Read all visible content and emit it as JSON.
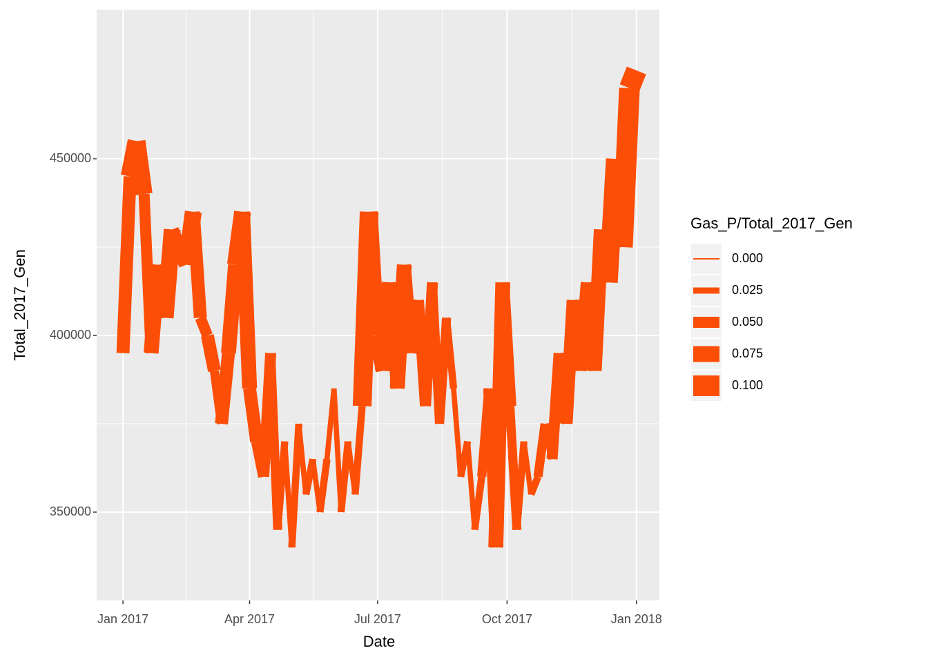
{
  "chart_data": {
    "type": "line",
    "xlabel": "Date",
    "ylabel": "Total_2017_Gen",
    "x": [
      0,
      5,
      10,
      15,
      20,
      25,
      30,
      35,
      40,
      45,
      50,
      55,
      60,
      65,
      70,
      75,
      80,
      85,
      90,
      95,
      100,
      105,
      110,
      115,
      120,
      125,
      130,
      135,
      140,
      145,
      150,
      155,
      160,
      165,
      170,
      175,
      180,
      185,
      190,
      195,
      200,
      205,
      210,
      215,
      220,
      225,
      230,
      235,
      240,
      245,
      250,
      255,
      260,
      265,
      270,
      275,
      280,
      285,
      290,
      295,
      300,
      305,
      310,
      315,
      320,
      325,
      330,
      335,
      340,
      345,
      350,
      355,
      360,
      365
    ],
    "series": [
      {
        "color": "#fc4e07",
        "values": [
          395000,
          445000,
          455000,
          440000,
          395000,
          420000,
          405000,
          430000,
          425000,
          420000,
          435000,
          405000,
          400000,
          390000,
          375000,
          395000,
          420000,
          435000,
          385000,
          370000,
          360000,
          395000,
          345000,
          370000,
          340000,
          375000,
          355000,
          365000,
          350000,
          365000,
          385000,
          350000,
          370000,
          355000,
          380000,
          435000,
          400000,
          390000,
          415000,
          385000,
          420000,
          395000,
          410000,
          380000,
          415000,
          375000,
          405000,
          385000,
          360000,
          370000,
          345000,
          360000,
          385000,
          340000,
          415000,
          380000,
          345000,
          370000,
          355000,
          360000,
          375000,
          365000,
          395000,
          375000,
          410000,
          390000,
          415000,
          390000,
          430000,
          415000,
          450000,
          425000,
          470000,
          475000
        ],
        "sizes": [
          0.01,
          0.06,
          0.09,
          0.08,
          0.05,
          0.07,
          0.06,
          0.08,
          0.06,
          0.07,
          0.08,
          0.06,
          0.05,
          0.06,
          0.04,
          0.06,
          0.07,
          0.08,
          0.07,
          0.06,
          0.05,
          0.05,
          0.04,
          0.03,
          0.02,
          0.03,
          0.02,
          0.03,
          0.02,
          0.03,
          0.02,
          0.02,
          0.03,
          0.02,
          0.03,
          0.09,
          0.08,
          0.07,
          0.08,
          0.06,
          0.07,
          0.06,
          0.05,
          0.05,
          0.05,
          0.04,
          0.04,
          0.03,
          0.02,
          0.03,
          0.02,
          0.03,
          0.04,
          0.05,
          0.07,
          0.06,
          0.04,
          0.03,
          0.02,
          0.03,
          0.04,
          0.03,
          0.05,
          0.04,
          0.06,
          0.05,
          0.06,
          0.05,
          0.07,
          0.07,
          0.09,
          0.08,
          0.1,
          0.1
        ]
      }
    ],
    "xlim": [
      -18.7,
      381.3
    ],
    "xticks": [
      {
        "value": 0,
        "label": "Jan 2017"
      },
      {
        "value": 90,
        "label": "Apr 2017"
      },
      {
        "value": 181,
        "label": "Jul 2017"
      },
      {
        "value": 273,
        "label": "Oct 2017"
      },
      {
        "value": 365,
        "label": "Jan 2018"
      }
    ],
    "ylim": [
      325000,
      492200
    ],
    "yticks": [
      350000,
      400000,
      450000
    ],
    "grid": true,
    "legend": {
      "title": "Gas_P/Total_2017_Gen",
      "position": "right",
      "sizes": [
        {
          "value": 0,
          "label": "0.000"
        },
        {
          "value": 0.025,
          "label": "0.025"
        },
        {
          "value": 0.05,
          "label": "0.050"
        },
        {
          "value": 0.075,
          "label": "0.075"
        },
        {
          "value": 0.1,
          "label": "0.100"
        }
      ]
    }
  }
}
